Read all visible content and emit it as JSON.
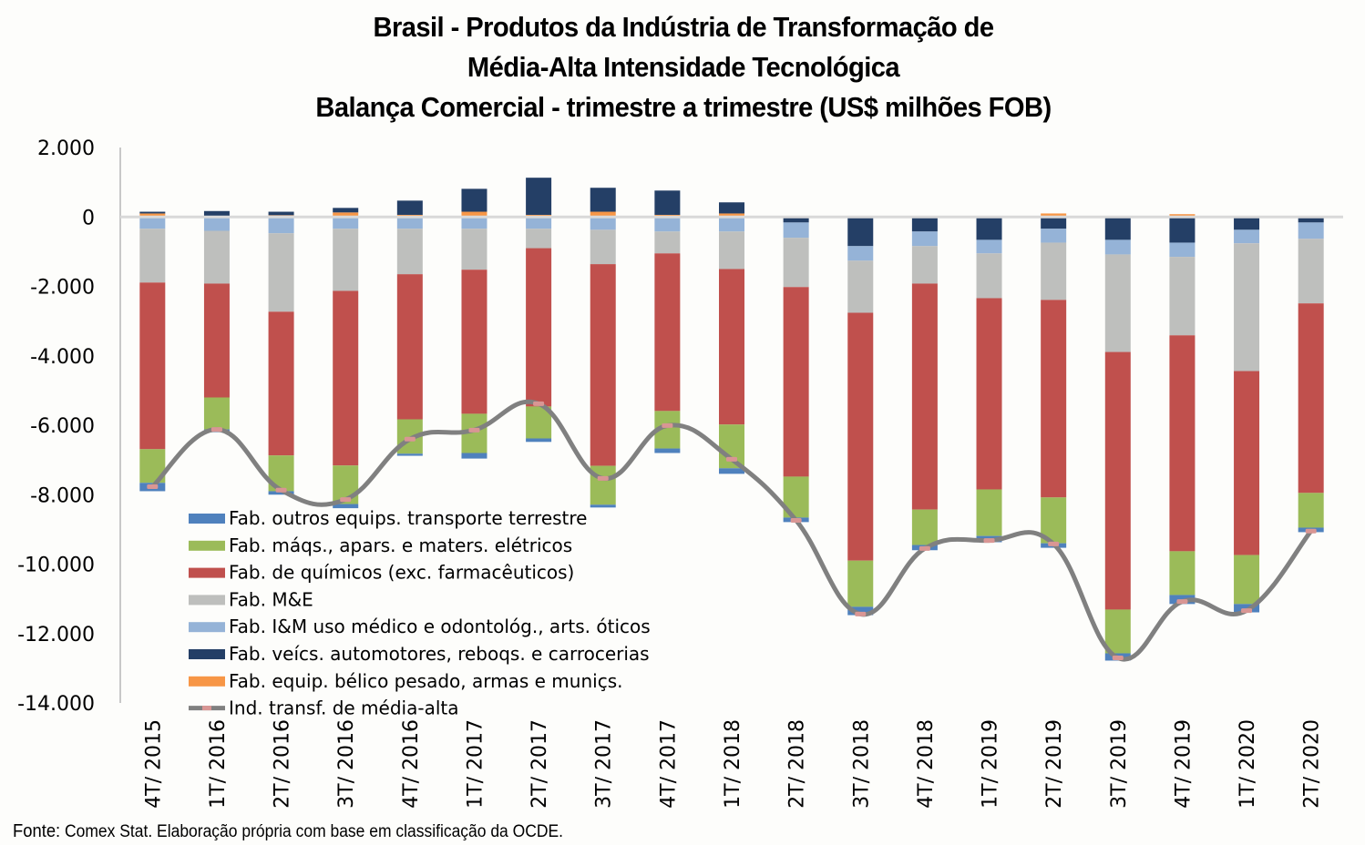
{
  "chart_data": {
    "type": "bar",
    "stacked": true,
    "title": "Brasil - Produtos da Indústria de Transformação de Média-Alta Intensidade Tecnológica Balança Comercial - trimestre a trimestre (US$ milhões FOB)",
    "title_lines": [
      "Brasil - Produtos da Indústria de Transformação de",
      "Média-Alta Intensidade Tecnológica",
      "Balança Comercial - trimestre a trimestre (US$ milhões FOB)"
    ],
    "xlabel": "",
    "ylabel": "",
    "ylim": [
      -14000,
      2000
    ],
    "yticks": [
      2000,
      0,
      -2000,
      -4000,
      -6000,
      -8000,
      -10000,
      -12000,
      -14000
    ],
    "ytick_labels": [
      "2.000",
      "0",
      "-2.000",
      "-4.000",
      "-6.000",
      "-8.000",
      "-10.000",
      "-12.000",
      "-14.000"
    ],
    "grid": false,
    "legend_position": "bottom-left (inside plot)",
    "categories": [
      "4T/ 2015",
      "1T/ 2016",
      "2T/ 2016",
      "3T/ 2016",
      "4T/ 2016",
      "1T/ 2017",
      "2T/ 2017",
      "3T/ 2017",
      "4T/ 2017",
      "1T/ 2018",
      "2T/ 2018",
      "3T/ 2018",
      "4T/ 2018",
      "1T/ 2019",
      "2T/ 2019",
      "3T/ 2019",
      "4T/ 2019",
      "1T/ 2020",
      "2T/ 2020"
    ],
    "series": [
      {
        "name": "Fab. outros equips. transporte terrestre",
        "color": "#4f81bd",
        "type": "bar",
        "values": [
          -240,
          -80,
          -100,
          -120,
          -60,
          -160,
          -100,
          -80,
          -130,
          -160,
          -130,
          -240,
          -150,
          -180,
          -130,
          -210,
          -260,
          -240,
          -130
        ]
      },
      {
        "name": "Fab. máqs., apars. e maters. elétricos",
        "color": "#9bbb59",
        "type": "bar",
        "values": [
          -970,
          -920,
          -1030,
          -1110,
          -990,
          -1130,
          -920,
          -1120,
          -1080,
          -1260,
          -1180,
          -1330,
          -1020,
          -1340,
          -1320,
          -1260,
          -1260,
          -1410,
          -1000
        ]
      },
      {
        "name": "Fab. de químicos (exc. farmacêuticos)",
        "color": "#c0504d",
        "type": "bar",
        "values": [
          -4800,
          -3280,
          -4140,
          -5030,
          -4180,
          -4150,
          -4560,
          -5810,
          -4540,
          -4480,
          -5460,
          -7140,
          -6510,
          -5510,
          -5690,
          -7420,
          -6220,
          -5300,
          -5460
        ]
      },
      {
        "name": "Fab. M&E",
        "color": "#bebfbd",
        "type": "bar",
        "values": [
          -1550,
          -1520,
          -2260,
          -1790,
          -1310,
          -1180,
          -560,
          -990,
          -630,
          -1080,
          -1420,
          -1500,
          -1080,
          -1290,
          -1650,
          -2810,
          -2260,
          -3680,
          -1860
        ]
      },
      {
        "name": "Fab. I&M uso médico e odontológ., arts. óticos",
        "color": "#95b3d7",
        "type": "bar",
        "values": [
          -340,
          -400,
          -470,
          -340,
          -340,
          -340,
          -340,
          -370,
          -420,
          -420,
          -440,
          -420,
          -420,
          -390,
          -400,
          -420,
          -410,
          -390,
          -470
        ]
      },
      {
        "name": "Fab. veícs. automotores, reboqs. e carrocerias",
        "color": "#243f66",
        "type": "bar",
        "values": [
          50,
          160,
          100,
          130,
          410,
          660,
          1070,
          690,
          700,
          320,
          -160,
          -840,
          -420,
          -660,
          -340,
          -660,
          -740,
          -370,
          -160
        ]
      },
      {
        "name": "Fab. equip. bélico pesado, armas e muniçs.",
        "color": "#f79646",
        "type": "bar",
        "values": [
          100,
          10,
          50,
          130,
          60,
          150,
          60,
          150,
          60,
          100,
          30,
          0,
          30,
          30,
          100,
          30,
          80,
          0,
          30
        ]
      },
      {
        "name": "Ind. transf. de média-alta",
        "color": "#808080",
        "marker_color": "#d99694",
        "type": "line",
        "smooth": true,
        "values": [
          -7770,
          -6120,
          -7870,
          -8140,
          -6400,
          -6140,
          -5380,
          -7530,
          -6010,
          -6980,
          -8740,
          -11440,
          -9550,
          -9320,
          -9420,
          -12700,
          -11080,
          -11340,
          -9050
        ]
      }
    ],
    "legend": [
      "Fab. outros equips. transporte terrestre",
      "Fab. máqs., apars. e maters. elétricos",
      "Fab. de químicos (exc. farmacêuticos)",
      "Fab. M&E",
      "Fab. I&M uso médico e odontológ., arts. óticos",
      "Fab. veícs. automotores, reboqs. e carrocerias",
      "Fab. equip. bélico pesado, armas e muniçs.",
      "Ind. transf. de média-alta"
    ]
  },
  "source": {
    "lead": "Fonte:",
    "text": " Comex Stat. Elaboração própria com base em classificação da OCDE."
  }
}
